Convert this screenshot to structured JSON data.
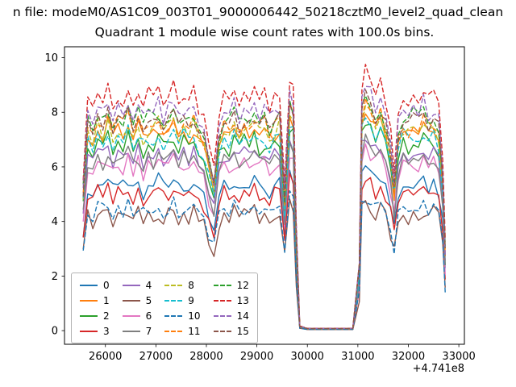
{
  "figure": {
    "suptitle": "n file: modeM0/AS1C09_003T01_9000006442_50218cztM0_level2_quad_clean",
    "title": "Quadrant 1 module wise count rates with 100.0s bins.",
    "offset_text": "+4.741e8"
  },
  "chart_data": {
    "type": "line",
    "title": "Quadrant 1 module wise count rates with 100.0s bins.",
    "suptitle_visible": "n file: modeM0/AS1C09_003T01_9000006442_50218cztM0_level2_quad_clean",
    "xlabel": "",
    "ylabel": "",
    "x_axis_offset": "+4.741e8",
    "xlim": [
      25190,
      33110
    ],
    "ylim": [
      -0.5,
      10.4
    ],
    "xticks": [
      26000,
      27000,
      28000,
      29000,
      30000,
      31000,
      32000,
      33000
    ],
    "yticks": [
      0,
      2,
      4,
      6,
      8,
      10
    ],
    "grid": false,
    "legend": {
      "location": "lower left",
      "ncol": 4
    },
    "x": [
      25560,
      25650,
      25750,
      25850,
      25950,
      26050,
      26150,
      26250,
      26350,
      26450,
      26550,
      26650,
      26750,
      26850,
      26950,
      27050,
      27150,
      27250,
      27350,
      27450,
      27550,
      27650,
      27750,
      27850,
      27950,
      28050,
      28150,
      28250,
      28350,
      28450,
      28550,
      28650,
      28750,
      28850,
      28950,
      29050,
      29150,
      29250,
      29350,
      29450,
      29550,
      29650,
      29720,
      29780,
      29850,
      30000,
      30300,
      30600,
      30900,
      31030,
      31080,
      31150,
      31250,
      31350,
      31450,
      31550,
      31650,
      31720,
      31800,
      31900,
      32000,
      32100,
      32200,
      32300,
      32400,
      32500,
      32600,
      32680,
      32730
    ],
    "profile": [
      0.68,
      1.0,
      0.96,
      1.04,
      0.99,
      1.05,
      0.97,
      1.02,
      1.0,
      1.05,
      0.98,
      1.03,
      0.96,
      1.02,
      1.0,
      1.04,
      0.98,
      1.01,
      1.05,
      0.97,
      1.02,
      0.99,
      1.03,
      0.96,
      0.92,
      0.8,
      0.7,
      0.93,
      1.01,
      0.98,
      1.03,
      0.97,
      1.02,
      0.99,
      1.04,
      0.98,
      1.02,
      0.96,
      1.0,
      1.03,
      0.62,
      1.1,
      1.05,
      0.45,
      0.02,
      0.01,
      0.01,
      0.01,
      0.01,
      0.3,
      1.05,
      1.13,
      1.08,
      1.02,
      1.06,
      0.98,
      0.85,
      0.7,
      0.95,
      1.02,
      0.98,
      1.03,
      1.0,
      1.05,
      0.99,
      1.02,
      0.97,
      0.75,
      0.38
    ],
    "series": [
      {
        "name": "0",
        "color": "#1f77b4",
        "style": "solid",
        "level": 5.3
      },
      {
        "name": "1",
        "color": "#ff7f0e",
        "style": "solid",
        "level": 7.2
      },
      {
        "name": "2",
        "color": "#2ca02c",
        "style": "solid",
        "level": 6.8
      },
      {
        "name": "3",
        "color": "#d62728",
        "style": "solid",
        "level": 5.0
      },
      {
        "name": "4",
        "color": "#9467bd",
        "style": "solid",
        "level": 6.4
      },
      {
        "name": "5",
        "color": "#8c564b",
        "style": "solid",
        "level": 4.2
      },
      {
        "name": "6",
        "color": "#e377c2",
        "style": "solid",
        "level": 6.0
      },
      {
        "name": "7",
        "color": "#7f7f7f",
        "style": "solid",
        "level": 6.2
      },
      {
        "name": "8",
        "color": "#bcbd22",
        "style": "dashed",
        "level": 7.3
      },
      {
        "name": "9",
        "color": "#17becf",
        "style": "dashed",
        "level": 7.0
      },
      {
        "name": "10",
        "color": "#1f77b4",
        "style": "dashed",
        "level": 4.4
      },
      {
        "name": "11",
        "color": "#ff7f0e",
        "style": "dashed",
        "level": 7.5
      },
      {
        "name": "12",
        "color": "#2ca02c",
        "style": "dashed",
        "level": 7.7
      },
      {
        "name": "13",
        "color": "#d62728",
        "style": "dashed",
        "level": 8.5
      },
      {
        "name": "14",
        "color": "#9467bd",
        "style": "dashed",
        "level": 8.0
      },
      {
        "name": "15",
        "color": "#8c564b",
        "style": "dashed",
        "level": 7.6
      }
    ]
  }
}
